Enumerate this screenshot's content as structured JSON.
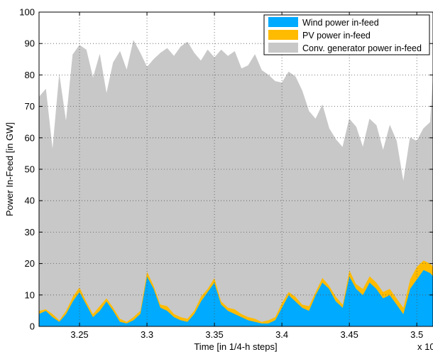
{
  "chart_data": {
    "type": "area",
    "stacked": true,
    "xlabel": "Time [in 1/4-h steps]",
    "ylabel": "Power In-Feed [in GW]",
    "x_exponent_label": "x 10",
    "xlim": [
      32200,
      35120
    ],
    "ylim": [
      0,
      100
    ],
    "x_ticks": [
      32500,
      33000,
      33500,
      34000,
      34500,
      35000
    ],
    "x_tick_labels": [
      "3.25",
      "3.3",
      "3.35",
      "3.4",
      "3.45",
      "3.5"
    ],
    "y_ticks": [
      0,
      10,
      20,
      30,
      40,
      50,
      60,
      70,
      80,
      90,
      100
    ],
    "y_tick_labels": [
      "0",
      "10",
      "20",
      "30",
      "40",
      "50",
      "60",
      "70",
      "80",
      "90",
      "100"
    ],
    "grid": true,
    "legend_position": "top-right",
    "series": [
      {
        "name": "Wind power in-feed",
        "color": "#00aaff",
        "x": [
          32200,
          32250,
          32300,
          32350,
          32400,
          32450,
          32500,
          32550,
          32600,
          32650,
          32700,
          32750,
          32800,
          32850,
          32900,
          32950,
          33000,
          33050,
          33100,
          33150,
          33200,
          33250,
          33300,
          33350,
          33400,
          33450,
          33500,
          33550,
          33600,
          33650,
          33700,
          33750,
          33800,
          33850,
          33900,
          33950,
          34000,
          34050,
          34100,
          34150,
          34200,
          34250,
          34300,
          34350,
          34400,
          34450,
          34500,
          34550,
          34600,
          34650,
          34700,
          34750,
          34800,
          34850,
          34900,
          34950,
          35000,
          35050,
          35100,
          35120
        ],
        "values": [
          4,
          5,
          3,
          1.5,
          4,
          8,
          11,
          7,
          3,
          5,
          8,
          5,
          1.5,
          1,
          2,
          4,
          16,
          12,
          6,
          5,
          3,
          2,
          1.5,
          4,
          8,
          11,
          14,
          7,
          5,
          4,
          3,
          2,
          1.5,
          1,
          1,
          2,
          6,
          10,
          8,
          6,
          5,
          10,
          14,
          12,
          8,
          6,
          16,
          12,
          10,
          14,
          12,
          9,
          10,
          7,
          4,
          12,
          15,
          18,
          17,
          16
        ]
      },
      {
        "name": "PV power in-feed",
        "color": "#ffbb00",
        "x": [
          32200,
          32250,
          32300,
          32350,
          32400,
          32450,
          32500,
          32550,
          32600,
          32650,
          32700,
          32750,
          32800,
          32850,
          32900,
          32950,
          33000,
          33050,
          33100,
          33150,
          33200,
          33250,
          33300,
          33350,
          33400,
          33450,
          33500,
          33550,
          33600,
          33650,
          33700,
          33750,
          33800,
          33850,
          33900,
          33950,
          34000,
          34050,
          34100,
          34150,
          34200,
          34250,
          34300,
          34350,
          34400,
          34450,
          34500,
          34550,
          34600,
          34650,
          34700,
          34750,
          34800,
          34850,
          34900,
          34950,
          35000,
          35050,
          35100,
          35120
        ],
        "values": [
          1,
          0.5,
          1,
          0.5,
          1,
          1.5,
          1.5,
          1,
          1,
          1.5,
          1,
          1,
          1,
          0.5,
          1,
          1,
          1.5,
          1,
          1,
          1.5,
          1,
          1,
          1,
          1,
          1.5,
          1,
          1.5,
          1,
          1,
          1.5,
          1,
          1,
          1,
          0.5,
          1,
          1,
          1.5,
          1,
          1.5,
          1,
          1.5,
          1,
          1.5,
          1,
          1.5,
          1,
          2,
          1.5,
          2,
          2,
          2,
          2,
          2,
          2,
          2,
          3,
          4,
          3,
          3,
          3
        ]
      },
      {
        "name": "Conv. generator power in-feed",
        "color": "#c8c8c8",
        "x": [
          32200,
          32250,
          32300,
          32350,
          32400,
          32450,
          32500,
          32550,
          32600,
          32650,
          32700,
          32750,
          32800,
          32850,
          32900,
          32950,
          33000,
          33050,
          33100,
          33150,
          33200,
          33250,
          33300,
          33350,
          33400,
          33450,
          33500,
          33550,
          33600,
          33650,
          33700,
          33750,
          33800,
          33850,
          33900,
          33950,
          34000,
          34050,
          34100,
          34150,
          34200,
          34250,
          34300,
          34350,
          34400,
          34450,
          34500,
          34550,
          34600,
          34650,
          34700,
          34750,
          34800,
          34850,
          34900,
          34950,
          35000,
          35050,
          35100,
          35120
        ],
        "values": [
          68,
          70,
          52,
          78,
          60,
          77,
          77,
          80,
          75,
          80,
          65,
          78,
          85,
          80,
          88,
          82,
          65,
          72,
          80,
          82,
          82,
          86,
          88,
          82,
          75,
          76,
          70,
          80,
          80,
          82,
          78,
          80,
          84,
          80,
          78,
          75,
          70,
          70,
          70,
          68,
          62,
          55,
          55,
          50,
          50,
          50,
          48,
          50,
          45,
          50,
          50,
          45,
          52,
          50,
          40,
          45,
          40,
          42,
          45,
          60
        ]
      }
    ]
  }
}
